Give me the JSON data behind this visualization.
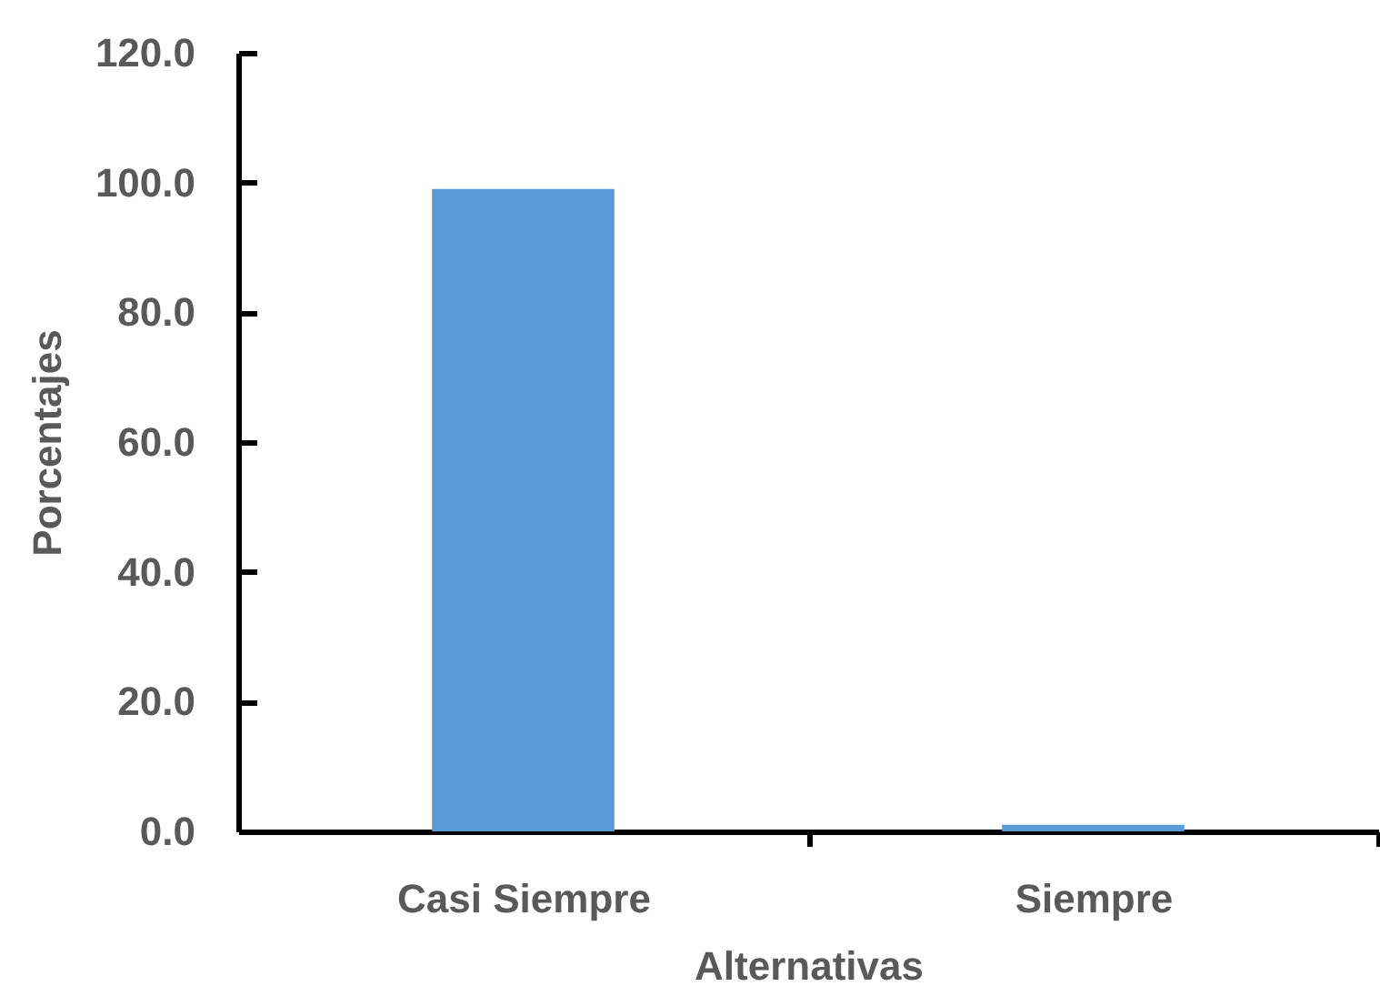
{
  "chart_data": {
    "type": "bar",
    "categories": [
      "Casi Siempre",
      "Siempre"
    ],
    "values": [
      99,
      1
    ],
    "color": "#5b9bd5",
    "xlabel": "Alternativas",
    "ylabel": "Porcentajes",
    "ylim": [
      0,
      120
    ],
    "yticks": [
      {
        "value": 0,
        "label": "0.0"
      },
      {
        "value": 20,
        "label": "20.0"
      },
      {
        "value": 40,
        "label": "40.0"
      },
      {
        "value": 60,
        "label": "60.0"
      },
      {
        "value": 80,
        "label": "80.0"
      },
      {
        "value": 100,
        "label": "100.0"
      },
      {
        "value": 120,
        "label": "120.0"
      }
    ],
    "grid": false
  }
}
